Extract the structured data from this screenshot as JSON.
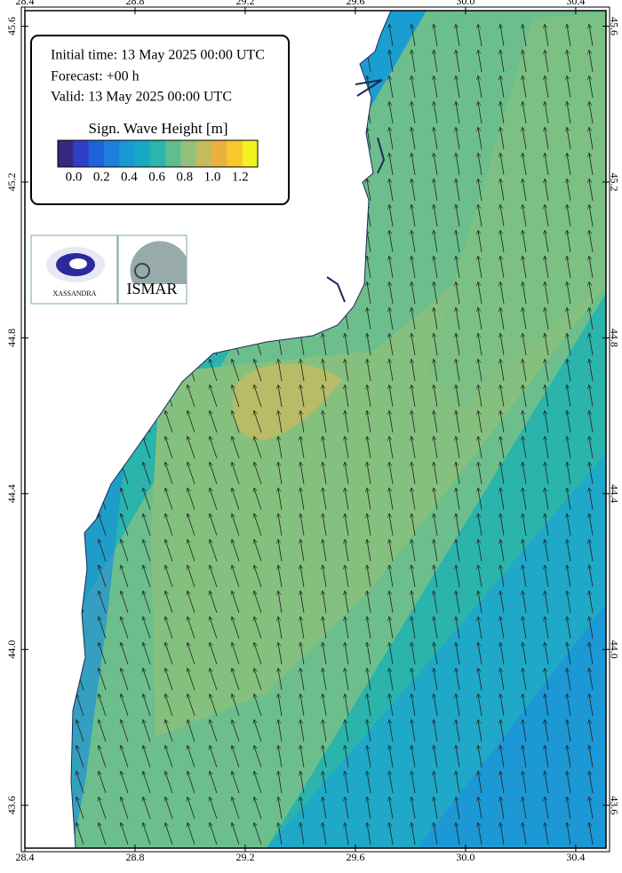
{
  "map": {
    "lon_range": [
      28.4,
      30.51
    ],
    "lat_range": [
      43.49,
      45.64
    ],
    "lon_ticks": [
      28.4,
      28.8,
      29.2,
      29.6,
      {
        "value": 30,
        "label": "30.0"
      },
      30.4
    ],
    "lat_ticks": [
      45.6,
      45.2,
      44.8,
      44.4,
      {
        "value": 44,
        "label": "44.0"
      },
      43.6
    ]
  },
  "info": {
    "initial": "Initial time: 13 May 2025 00:00 UTC",
    "forecast": "Forecast: +00 h",
    "valid": "Valid: 13 May 2025 00:00 UTC"
  },
  "legend": {
    "title": "Sign. Wave Height [m]",
    "colors": [
      "#35287e",
      "#3040c4",
      "#1f62db",
      "#1b80dc",
      "#1a98d2",
      "#17aac6",
      "#2bb5ad",
      "#5fbd8f",
      "#92c07a",
      "#c4bb5c",
      "#eab13f",
      "#f8c92a",
      "#f3f21f"
    ],
    "labels": [
      {
        "value": 0,
        "label": "0.0"
      },
      0.2,
      0.4,
      0.6,
      0.8,
      {
        "value": 1,
        "label": "1.0"
      },
      1.2
    ]
  },
  "logos": {
    "left": "XASSANDRA",
    "right": "ISMAR"
  }
}
